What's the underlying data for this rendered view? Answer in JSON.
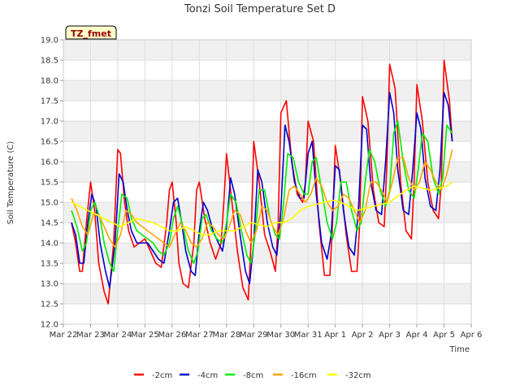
{
  "chart_data": {
    "type": "line",
    "title": "Tonzi Soil Temperature Set D",
    "xlabel": "Time",
    "ylabel": "Soil Temperature (C)",
    "site_badge": "TZ_fmet",
    "ylim": [
      12.0,
      19.0
    ],
    "xlim": [
      "2024-03-22",
      "2024-04-06"
    ],
    "yticks": [
      "12.0",
      "12.5",
      "13.0",
      "13.5",
      "14.0",
      "14.5",
      "15.0",
      "15.5",
      "16.0",
      "16.5",
      "17.0",
      "17.5",
      "18.0",
      "18.5",
      "19.0"
    ],
    "xticks": [
      "Mar 22",
      "Mar 23",
      "Mar 24",
      "Mar 25",
      "Mar 26",
      "Mar 27",
      "Mar 28",
      "Mar 29",
      "Mar 30",
      "Mar 31",
      "Apr 1",
      "Apr 2",
      "Apr 3",
      "Apr 4",
      "Apr 5",
      "Apr 6"
    ],
    "grid": true,
    "legend_position": "bottom",
    "x_unit": "days after Mar 22 00:00",
    "series": [
      {
        "name": "-2cm",
        "color": "#ff0000",
        "x": [
          0.3,
          0.45,
          0.6,
          0.7,
          0.85,
          1.0,
          1.15,
          1.3,
          1.5,
          1.65,
          1.85,
          2.0,
          2.1,
          2.25,
          2.4,
          2.6,
          2.8,
          3.0,
          3.2,
          3.4,
          3.6,
          3.8,
          3.9,
          4.0,
          4.15,
          4.25,
          4.4,
          4.6,
          4.8,
          4.9,
          5.0,
          5.2,
          5.4,
          5.6,
          5.8,
          5.9,
          6.0,
          6.2,
          6.4,
          6.6,
          6.8,
          6.9,
          7.0,
          7.2,
          7.4,
          7.6,
          7.8,
          7.9,
          8.0,
          8.2,
          8.4,
          8.6,
          8.8,
          8.9,
          9.0,
          9.2,
          9.4,
          9.6,
          9.8,
          9.9,
          10.0,
          10.2,
          10.4,
          10.6,
          10.8,
          10.9,
          11.0,
          11.2,
          11.4,
          11.6,
          11.8,
          11.9,
          12.0,
          12.2,
          12.4,
          12.6,
          12.8,
          12.9,
          13.0,
          13.2,
          13.4,
          13.6,
          13.8,
          13.9,
          14.0,
          14.2,
          14.3
        ],
        "y": [
          14.5,
          14.0,
          13.3,
          13.3,
          14.5,
          15.5,
          14.8,
          13.5,
          12.8,
          12.5,
          14.0,
          16.3,
          16.2,
          15.0,
          14.3,
          13.9,
          14.0,
          14.1,
          13.8,
          13.5,
          13.4,
          14.5,
          15.3,
          15.5,
          14.5,
          13.5,
          13.0,
          12.9,
          14.0,
          15.3,
          15.5,
          14.6,
          14.0,
          13.6,
          14.0,
          15.0,
          16.2,
          15.0,
          13.8,
          12.9,
          12.6,
          14.0,
          16.5,
          15.5,
          14.2,
          13.8,
          13.3,
          14.5,
          17.2,
          17.5,
          16.0,
          15.2,
          15.0,
          15.5,
          17.0,
          16.5,
          14.5,
          13.2,
          13.2,
          14.5,
          16.4,
          15.5,
          14.2,
          13.3,
          13.3,
          14.5,
          17.6,
          17.0,
          15.3,
          14.5,
          14.4,
          16.0,
          18.4,
          17.8,
          15.5,
          14.3,
          14.1,
          15.5,
          17.9,
          17.0,
          15.5,
          14.8,
          14.6,
          15.5,
          18.5,
          17.5,
          16.5
        ]
      },
      {
        "name": "-4cm",
        "color": "#0000cc",
        "x": [
          0.3,
          0.45,
          0.6,
          0.75,
          0.9,
          1.05,
          1.2,
          1.35,
          1.55,
          1.7,
          1.9,
          2.05,
          2.2,
          2.35,
          2.5,
          2.7,
          2.9,
          3.1,
          3.3,
          3.5,
          3.7,
          3.9,
          4.05,
          4.2,
          4.35,
          4.5,
          4.7,
          4.85,
          5.0,
          5.15,
          5.3,
          5.5,
          5.7,
          5.85,
          6.0,
          6.15,
          6.3,
          6.5,
          6.7,
          6.85,
          7.0,
          7.15,
          7.3,
          7.5,
          7.7,
          7.85,
          8.0,
          8.15,
          8.3,
          8.5,
          8.7,
          8.85,
          9.0,
          9.15,
          9.3,
          9.5,
          9.7,
          9.85,
          10.0,
          10.15,
          10.3,
          10.5,
          10.7,
          10.85,
          11.0,
          11.15,
          11.3,
          11.5,
          11.7,
          11.85,
          12.0,
          12.15,
          12.3,
          12.5,
          12.7,
          12.85,
          13.0,
          13.15,
          13.3,
          13.5,
          13.7,
          13.85,
          14.0,
          14.15,
          14.3
        ],
        "y": [
          14.5,
          14.2,
          13.5,
          13.5,
          14.5,
          15.2,
          14.9,
          14.0,
          13.3,
          12.9,
          14.0,
          15.7,
          15.5,
          14.8,
          14.3,
          14.0,
          14.0,
          14.0,
          13.8,
          13.6,
          13.5,
          14.3,
          15.0,
          15.1,
          14.5,
          13.8,
          13.3,
          13.2,
          14.3,
          15.0,
          14.8,
          14.3,
          14.0,
          13.8,
          14.4,
          15.6,
          15.2,
          14.2,
          13.3,
          13.0,
          14.0,
          15.8,
          15.5,
          14.5,
          13.9,
          13.7,
          14.8,
          16.9,
          16.5,
          15.5,
          15.1,
          15.1,
          16.2,
          16.5,
          15.2,
          14.0,
          13.6,
          14.2,
          15.9,
          15.8,
          14.8,
          13.9,
          13.7,
          14.8,
          16.9,
          16.8,
          15.5,
          14.8,
          14.7,
          16.0,
          17.7,
          17.2,
          15.8,
          14.8,
          14.7,
          15.8,
          17.2,
          16.8,
          15.6,
          14.9,
          14.8,
          15.8,
          17.7,
          17.4,
          16.5
        ]
      },
      {
        "name": "-8cm",
        "color": "#00ee00",
        "x": [
          0.3,
          0.5,
          0.7,
          0.85,
          1.0,
          1.15,
          1.35,
          1.5,
          1.7,
          1.85,
          2.0,
          2.15,
          2.35,
          2.5,
          2.7,
          2.9,
          3.1,
          3.3,
          3.5,
          3.7,
          3.9,
          4.05,
          4.2,
          4.4,
          4.6,
          4.8,
          4.95,
          5.1,
          5.25,
          5.45,
          5.65,
          5.85,
          6.0,
          6.15,
          6.35,
          6.55,
          6.75,
          6.9,
          7.05,
          7.2,
          7.4,
          7.6,
          7.8,
          7.95,
          8.1,
          8.25,
          8.45,
          8.65,
          8.85,
          9.0,
          9.15,
          9.3,
          9.5,
          9.7,
          9.9,
          10.05,
          10.2,
          10.4,
          10.6,
          10.8,
          10.95,
          11.1,
          11.25,
          11.45,
          11.65,
          11.85,
          12.0,
          12.15,
          12.3,
          12.5,
          12.7,
          12.9,
          13.05,
          13.2,
          13.4,
          13.6,
          13.8,
          13.95,
          14.1,
          14.3
        ],
        "y": [
          14.8,
          14.4,
          13.8,
          14.0,
          14.8,
          15.0,
          14.6,
          14.0,
          13.5,
          13.3,
          14.3,
          15.2,
          15.1,
          14.6,
          14.3,
          14.2,
          14.1,
          14.0,
          13.8,
          13.7,
          14.0,
          14.6,
          14.9,
          14.4,
          13.8,
          13.5,
          13.8,
          14.6,
          14.7,
          14.3,
          14.1,
          14.0,
          14.5,
          15.2,
          15.0,
          14.3,
          13.7,
          13.5,
          14.2,
          15.3,
          15.3,
          14.6,
          14.2,
          14.1,
          15.0,
          16.2,
          16.1,
          15.5,
          15.2,
          15.2,
          16.0,
          16.1,
          15.3,
          14.5,
          14.1,
          14.5,
          15.5,
          15.5,
          14.8,
          14.3,
          14.5,
          15.5,
          16.3,
          16.0,
          15.3,
          14.9,
          15.3,
          16.7,
          17.0,
          16.0,
          15.3,
          15.1,
          15.8,
          16.7,
          16.5,
          15.6,
          15.2,
          15.6,
          16.9,
          16.7
        ]
      },
      {
        "name": "-16cm",
        "color": "#ffa500",
        "x": [
          0.3,
          0.5,
          0.7,
          0.9,
          1.1,
          1.3,
          1.5,
          1.7,
          1.9,
          2.1,
          2.3,
          2.5,
          2.7,
          2.9,
          3.1,
          3.3,
          3.5,
          3.7,
          3.9,
          4.1,
          4.3,
          4.5,
          4.7,
          4.9,
          5.1,
          5.3,
          5.5,
          5.7,
          5.9,
          6.1,
          6.3,
          6.5,
          6.7,
          6.9,
          7.1,
          7.3,
          7.5,
          7.7,
          7.9,
          8.1,
          8.3,
          8.5,
          8.7,
          8.9,
          9.1,
          9.3,
          9.5,
          9.7,
          9.9,
          10.1,
          10.3,
          10.5,
          10.7,
          10.9,
          11.1,
          11.3,
          11.5,
          11.7,
          11.9,
          12.1,
          12.3,
          12.5,
          12.7,
          12.9,
          13.1,
          13.3,
          13.5,
          13.7,
          13.9,
          14.1,
          14.3
        ],
        "y": [
          15.1,
          14.8,
          14.4,
          14.2,
          14.7,
          14.7,
          14.4,
          14.1,
          13.9,
          14.2,
          14.8,
          14.7,
          14.5,
          14.4,
          14.3,
          14.2,
          14.1,
          14.0,
          13.9,
          14.2,
          14.5,
          14.3,
          14.0,
          13.9,
          14.1,
          14.5,
          14.4,
          14.2,
          14.1,
          14.4,
          14.8,
          14.7,
          14.3,
          14.0,
          14.3,
          14.9,
          14.8,
          14.4,
          14.2,
          14.6,
          15.3,
          15.4,
          15.2,
          15.0,
          15.2,
          15.6,
          15.4,
          15.0,
          14.8,
          14.9,
          15.2,
          15.1,
          14.8,
          14.5,
          14.8,
          15.5,
          15.5,
          15.3,
          15.0,
          15.5,
          16.1,
          16.1,
          15.6,
          15.3,
          15.5,
          16.0,
          15.8,
          15.5,
          15.3,
          15.7,
          16.3
        ]
      },
      {
        "name": "-32cm",
        "color": "#ffff00",
        "x": [
          0.3,
          0.6,
          0.9,
          1.2,
          1.5,
          1.8,
          2.1,
          2.4,
          2.7,
          3.0,
          3.3,
          3.6,
          3.9,
          4.2,
          4.5,
          4.8,
          5.1,
          5.4,
          5.7,
          6.0,
          6.3,
          6.6,
          6.9,
          7.2,
          7.5,
          7.8,
          8.1,
          8.4,
          8.7,
          9.0,
          9.3,
          9.6,
          9.9,
          10.2,
          10.5,
          10.8,
          11.1,
          11.4,
          11.7,
          12.0,
          12.3,
          12.6,
          12.9,
          13.2,
          13.5,
          13.8,
          14.1,
          14.3
        ],
        "y": [
          15.0,
          14.9,
          14.8,
          14.7,
          14.6,
          14.5,
          14.4,
          14.5,
          14.6,
          14.55,
          14.5,
          14.4,
          14.3,
          14.3,
          14.4,
          14.3,
          14.2,
          14.2,
          14.3,
          14.3,
          14.3,
          14.4,
          14.5,
          14.45,
          14.4,
          14.5,
          14.5,
          14.6,
          14.8,
          14.9,
          14.95,
          15.0,
          15.05,
          15.0,
          14.9,
          14.8,
          14.85,
          14.9,
          14.95,
          15.0,
          15.15,
          15.3,
          15.4,
          15.35,
          15.3,
          15.35,
          15.4,
          15.5
        ]
      }
    ]
  }
}
